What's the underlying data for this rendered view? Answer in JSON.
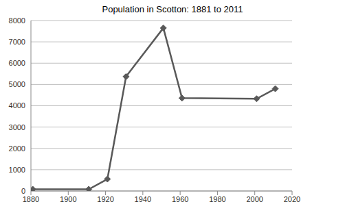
{
  "chart_data": {
    "type": "line",
    "title": "Population in Scotton: 1881 to 2011",
    "x": [
      1881,
      1911,
      1921,
      1931,
      1951,
      1961,
      2001,
      2011
    ],
    "values": [
      80,
      80,
      560,
      5370,
      7650,
      4360,
      4330,
      4800
    ],
    "color": "#595959",
    "marker": "diamond",
    "line_style": "solid",
    "xlim": [
      1880,
      2020
    ],
    "xticks": [
      1880,
      1900,
      1920,
      1940,
      1960,
      1980,
      2000,
      2020
    ],
    "ylim": [
      0,
      8000
    ],
    "yticks": [
      0,
      1000,
      2000,
      3000,
      4000,
      5000,
      6000,
      7000,
      8000
    ],
    "grid": true
  }
}
